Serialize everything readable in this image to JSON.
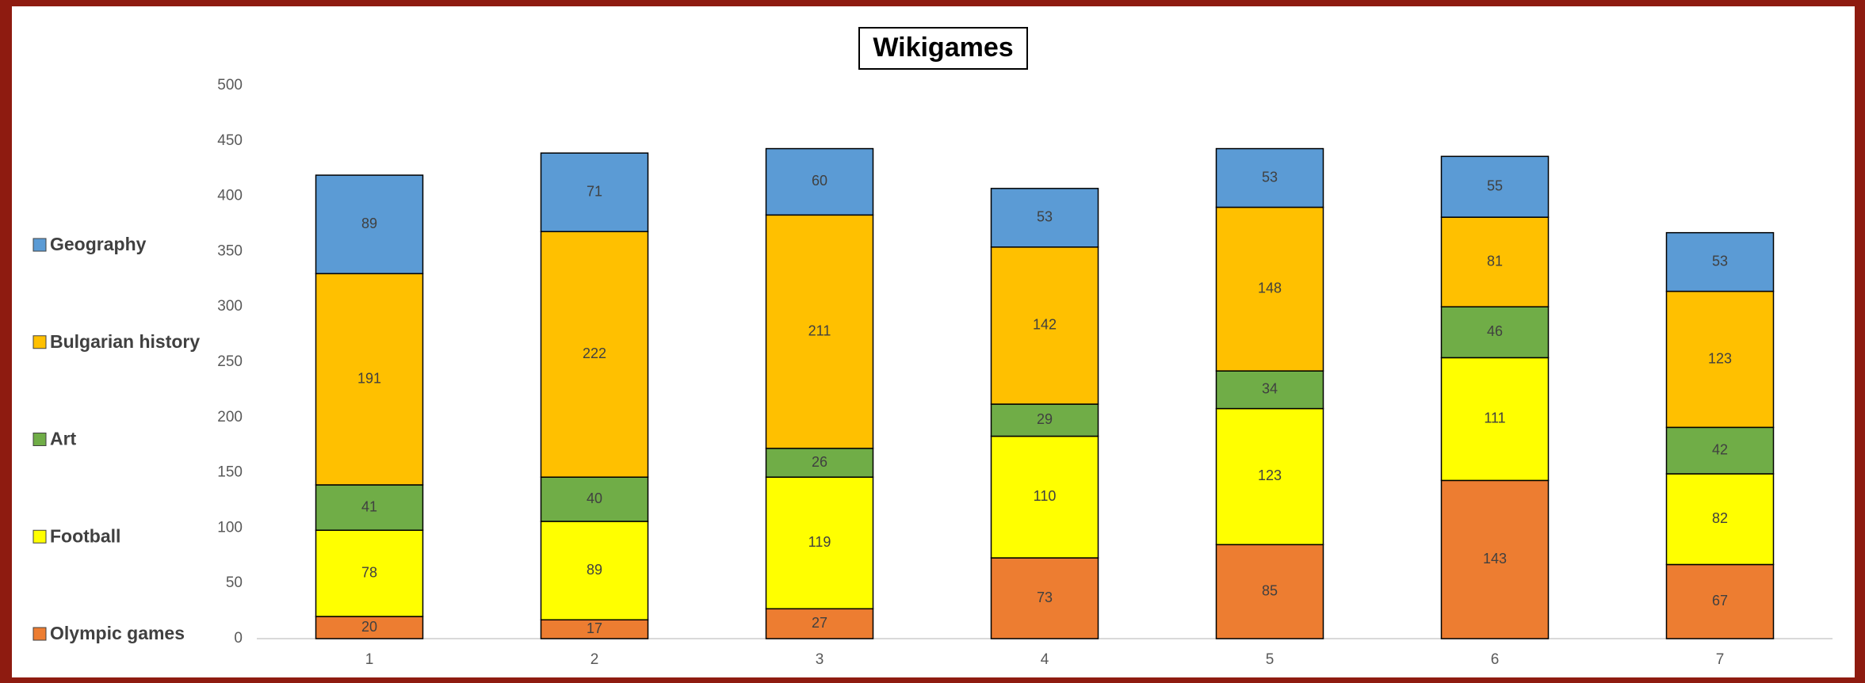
{
  "chart_data": {
    "type": "stacked_bar",
    "title": "Wikigames",
    "categories": [
      "1",
      "2",
      "3",
      "4",
      "5",
      "6",
      "7"
    ],
    "series": [
      {
        "name": "Olympic games",
        "color": "#ed7d31",
        "values": [
          20,
          17,
          27,
          73,
          85,
          143,
          67
        ]
      },
      {
        "name": "Football",
        "color": "#ffff00",
        "values": [
          78,
          89,
          119,
          110,
          123,
          111,
          82
        ]
      },
      {
        "name": "Art",
        "color": "#70ad47",
        "values": [
          41,
          40,
          26,
          29,
          34,
          46,
          42
        ]
      },
      {
        "name": "Bulgarian history",
        "color": "#ffc000",
        "values": [
          191,
          222,
          211,
          142,
          148,
          81,
          123
        ]
      },
      {
        "name": "Geography",
        "color": "#5b9bd5",
        "values": [
          89,
          71,
          60,
          53,
          53,
          55,
          53
        ]
      }
    ],
    "ylim": [
      0,
      500
    ],
    "yticks": [
      0,
      50,
      100,
      150,
      200,
      250,
      300,
      350,
      400,
      450,
      500
    ],
    "grid": false,
    "legend": "left"
  }
}
